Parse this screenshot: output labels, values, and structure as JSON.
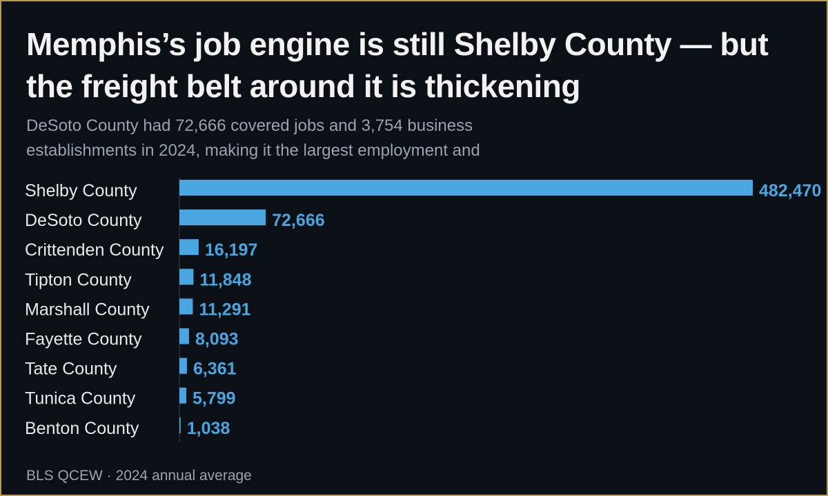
{
  "title": "Memphis’s job engine is still Shelby County — but the freight belt around it is thickening",
  "subtitle": "DeSoto County had 72,666 covered jobs and 3,754 business establishments in 2024, making it the largest employment and",
  "source": "BLS QCEW · 2024 annual average",
  "colors": {
    "background": "#0b0f16",
    "bar": "#4aa6e1",
    "value_label": "#4aa6e1",
    "border": "#b89a52"
  },
  "chart_data": {
    "type": "bar",
    "orientation": "horizontal",
    "categories": [
      "Shelby County",
      "DeSoto County",
      "Crittenden County",
      "Tipton County",
      "Marshall County",
      "Fayette County",
      "Tate County",
      "Tunica County",
      "Benton County"
    ],
    "values": [
      482470,
      72666,
      16197,
      11848,
      11291,
      8093,
      6361,
      5799,
      1038
    ],
    "value_labels": [
      "482,470",
      "72,666",
      "16,197",
      "11,848",
      "11,291",
      "8,093",
      "6,361",
      "5,799",
      "1,038"
    ],
    "xlim": [
      0,
      482470
    ],
    "grid": false,
    "legend": "none"
  }
}
